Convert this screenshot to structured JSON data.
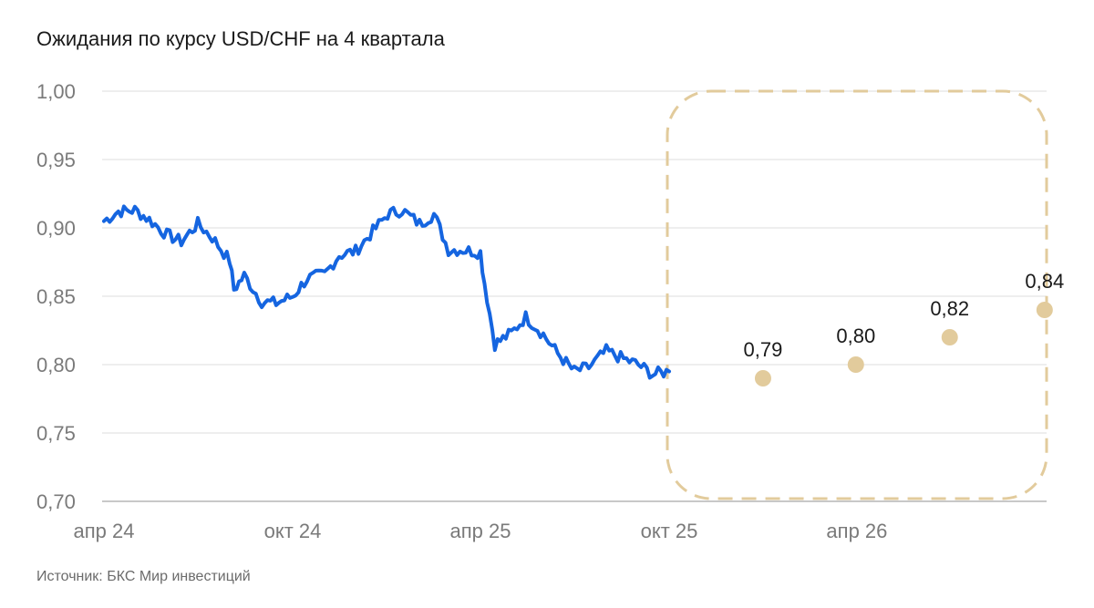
{
  "title": "Ожидания по курсу USD/CHF на 4 квартала",
  "source": "Источник: БКС Мир инвестиций",
  "colors": {
    "line": "#1565e0",
    "forecast": "#e2cb9c",
    "grid": "#dedede",
    "axis": "#c8c8c8"
  },
  "chart_data": {
    "type": "line",
    "title": "Ожидания по курсу USD/CHF на 4 квартала",
    "xlabel": "",
    "ylabel": "",
    "ylim": [
      0.7,
      1.0
    ],
    "y_ticks": [
      "0,70",
      "0,75",
      "0,80",
      "0,85",
      "0,90",
      "0,95",
      "1,00"
    ],
    "x_ticks": [
      "апр 24",
      "окт 24",
      "апр 25",
      "окт 25",
      "апр 26"
    ],
    "grid": true,
    "series": [
      {
        "kind": "history",
        "x": [
          "2024-04-01",
          "2024-04-15",
          "2024-05-01",
          "2024-05-15",
          "2024-06-01",
          "2024-06-15",
          "2024-07-01",
          "2024-07-15",
          "2024-08-01",
          "2024-08-05",
          "2024-08-15",
          "2024-09-01",
          "2024-09-15",
          "2024-10-01",
          "2024-10-15",
          "2024-11-01",
          "2024-11-15",
          "2024-12-01",
          "2024-12-15",
          "2025-01-01",
          "2025-01-15",
          "2025-02-01",
          "2025-02-15",
          "2025-03-01",
          "2025-03-15",
          "2025-04-01",
          "2025-04-05",
          "2025-04-15",
          "2025-05-01",
          "2025-05-15",
          "2025-06-01",
          "2025-06-15",
          "2025-07-01",
          "2025-07-15",
          "2025-08-01",
          "2025-08-15",
          "2025-09-01",
          "2025-09-15",
          "2025-10-01"
        ],
        "values": [
          0.905,
          0.912,
          0.913,
          0.906,
          0.895,
          0.89,
          0.903,
          0.893,
          0.876,
          0.855,
          0.865,
          0.846,
          0.845,
          0.85,
          0.863,
          0.866,
          0.88,
          0.883,
          0.895,
          0.91,
          0.913,
          0.903,
          0.91,
          0.884,
          0.884,
          0.882,
          0.86,
          0.815,
          0.823,
          0.835,
          0.822,
          0.808,
          0.795,
          0.798,
          0.81,
          0.805,
          0.8,
          0.793,
          0.795
        ]
      },
      {
        "kind": "forecast",
        "x": [
          "2025-12-31",
          "2026-03-31",
          "2026-06-30",
          "2026-09-30"
        ],
        "values": [
          0.79,
          0.8,
          0.82,
          0.84
        ],
        "labels": [
          "0,79",
          "0,80",
          "0,82",
          "0,84"
        ]
      }
    ]
  }
}
